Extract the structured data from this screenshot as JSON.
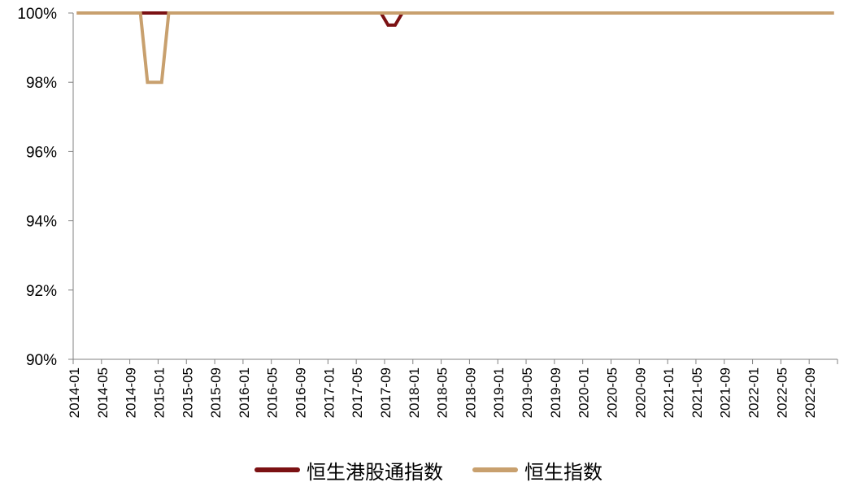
{
  "chart_data": {
    "type": "line",
    "title": "",
    "xlabel": "",
    "ylabel": "",
    "ylim": [
      0.9,
      1.0
    ],
    "y_ticks": [
      "90%",
      "92%",
      "94%",
      "96%",
      "98%",
      "100%"
    ],
    "x_ticks": [
      "2014-01",
      "2014-05",
      "2014-09",
      "2015-01",
      "2015-05",
      "2015-09",
      "2016-01",
      "2016-05",
      "2016-09",
      "2017-01",
      "2017-05",
      "2017-09",
      "2018-01",
      "2018-05",
      "2018-09",
      "2019-01",
      "2019-05",
      "2019-09",
      "2020-01",
      "2020-05",
      "2020-09",
      "2021-01",
      "2021-05",
      "2021-09",
      "2022-01",
      "2022-05",
      "2022-09"
    ],
    "x_range": [
      "2014-01",
      "2022-12"
    ],
    "legend_position": "bottom",
    "grid": false,
    "series": [
      {
        "name": "恒生港股通指数",
        "color": "#7b1113",
        "points": [
          {
            "x": "2014-01",
            "y": 1.0
          },
          {
            "x": "2017-08",
            "y": 1.0
          },
          {
            "x": "2017-09",
            "y": 0.9965
          },
          {
            "x": "2017-10",
            "y": 0.9965
          },
          {
            "x": "2017-11",
            "y": 1.0
          },
          {
            "x": "2022-12",
            "y": 1.0
          }
        ]
      },
      {
        "name": "恒生指数",
        "color": "#c8a06e",
        "points": [
          {
            "x": "2014-01",
            "y": 1.0
          },
          {
            "x": "2014-10",
            "y": 1.0
          },
          {
            "x": "2014-11",
            "y": 0.98
          },
          {
            "x": "2015-01",
            "y": 0.98
          },
          {
            "x": "2015-02",
            "y": 1.0
          },
          {
            "x": "2022-12",
            "y": 1.0
          }
        ]
      }
    ]
  }
}
